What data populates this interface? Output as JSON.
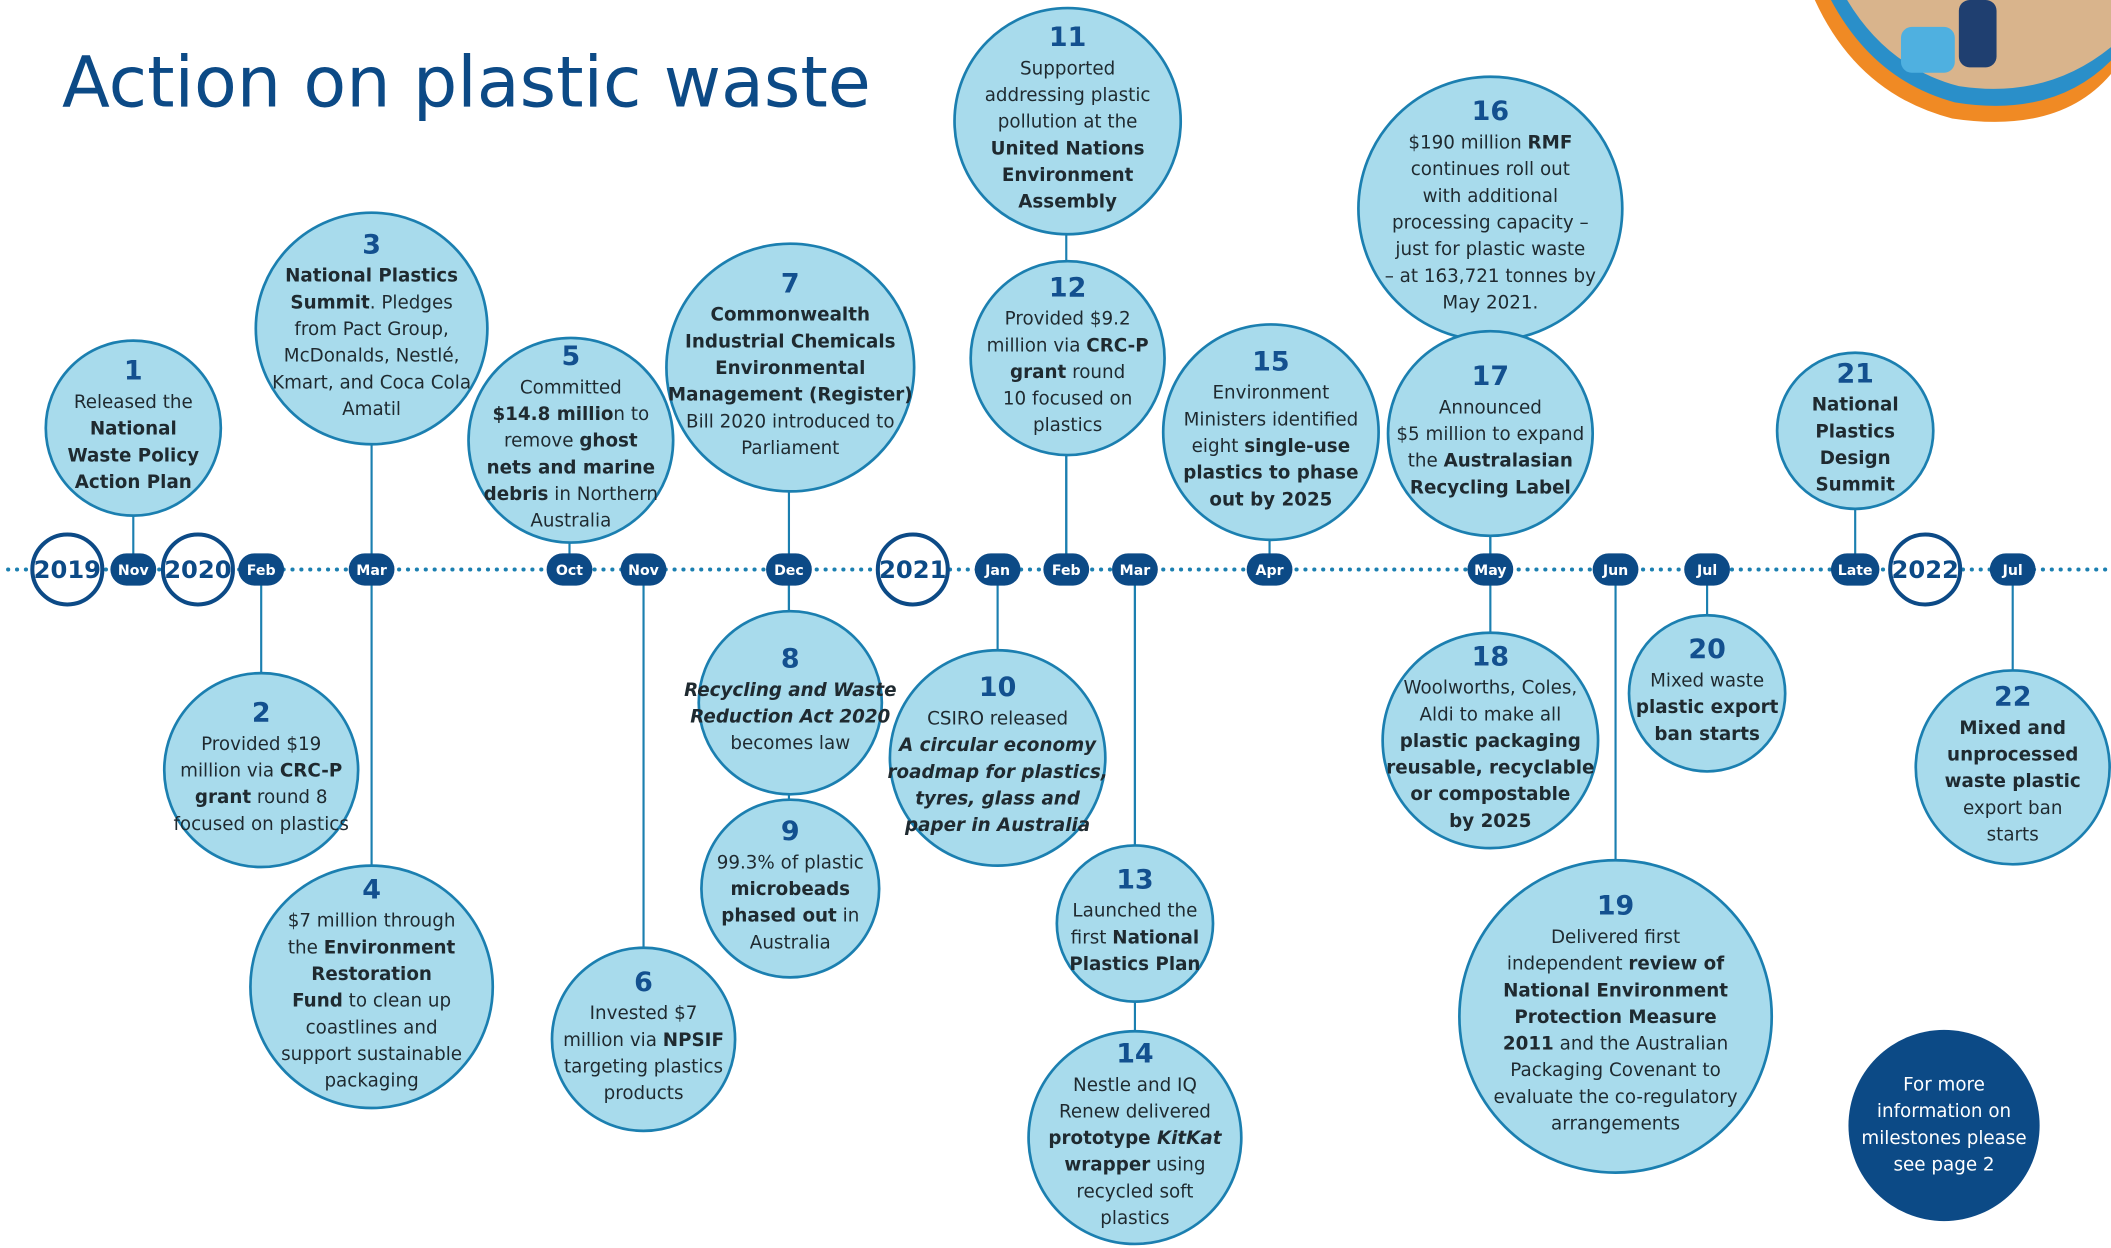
{
  "title": "Action on plastic waste",
  "markers": [
    {
      "label": "2019",
      "kind": "year"
    },
    {
      "label": "Nov",
      "kind": "month"
    },
    {
      "label": "2020",
      "kind": "year"
    },
    {
      "label": "Feb",
      "kind": "month"
    },
    {
      "label": "Mar",
      "kind": "month"
    },
    {
      "label": "Oct",
      "kind": "month"
    },
    {
      "label": "Nov",
      "kind": "month"
    },
    {
      "label": "Dec",
      "kind": "month"
    },
    {
      "label": "2021",
      "kind": "year"
    },
    {
      "label": "Jan",
      "kind": "month"
    },
    {
      "label": "Feb",
      "kind": "month"
    },
    {
      "label": "Mar",
      "kind": "month"
    },
    {
      "label": "Apr",
      "kind": "month"
    },
    {
      "label": "May",
      "kind": "month"
    },
    {
      "label": "Jun",
      "kind": "month"
    },
    {
      "label": "Jul",
      "kind": "month"
    },
    {
      "label": "Late",
      "kind": "month"
    },
    {
      "label": "2022",
      "kind": "year"
    },
    {
      "label": "Jul",
      "kind": "month"
    }
  ],
  "milestones": [
    {
      "number": "1",
      "lines": [
        "Released the",
        [
          {
            "text": "National",
            "bold": true
          }
        ],
        [
          {
            "text": "Waste Policy",
            "bold": true
          }
        ],
        [
          {
            "text": "Action Plan",
            "bold": true
          }
        ]
      ]
    },
    {
      "number": "2",
      "lines": [
        "Provided $19",
        [
          {
            "text": "million via "
          },
          {
            "text": "CRC-P",
            "bold": true
          }
        ],
        [
          {
            "text": "grant",
            "bold": true
          },
          {
            "text": " round 8"
          }
        ],
        "focused on plastics"
      ]
    },
    {
      "number": "3",
      "lines": [
        [
          {
            "text": "National Plastics",
            "bold": true
          }
        ],
        [
          {
            "text": "Summit",
            "bold": true
          },
          {
            "text": ". Pledges"
          }
        ],
        "from Pact Group,",
        "McDonalds, Nestlé,",
        "Kmart, and Coca Cola",
        "Amatil"
      ]
    },
    {
      "number": "4",
      "lines": [
        "$7 million through",
        [
          {
            "text": "the "
          },
          {
            "text": "Environment",
            "bold": true
          }
        ],
        [
          {
            "text": "Restoration",
            "bold": true
          }
        ],
        [
          {
            "text": "Fund",
            "bold": true
          },
          {
            "text": " to clean up"
          }
        ],
        "coastlines and",
        "support sustainable",
        "packaging"
      ]
    },
    {
      "number": "5",
      "lines": [
        "Committed",
        [
          {
            "text": "$14.8 millio",
            "bold": true
          },
          {
            "text": "n to"
          }
        ],
        [
          {
            "text": "remove "
          },
          {
            "text": "ghost",
            "bold": true
          }
        ],
        [
          {
            "text": "nets and marine",
            "bold": true
          }
        ],
        [
          {
            "text": "debris",
            "bold": true
          },
          {
            "text": " in Northern"
          }
        ],
        "Australia"
      ]
    },
    {
      "number": "6",
      "lines": [
        "Invested $7",
        [
          {
            "text": "million via "
          },
          {
            "text": "NPSIF",
            "bold": true
          }
        ],
        "targeting plastics",
        "products"
      ]
    },
    {
      "number": "7",
      "lines": [
        [
          {
            "text": "Commonwealth",
            "bold": true
          }
        ],
        [
          {
            "text": "Industrial Chemicals",
            "bold": true
          }
        ],
        [
          {
            "text": "Environmental",
            "bold": true
          }
        ],
        [
          {
            "text": "Management (Register)",
            "bold": true
          }
        ],
        "Bill 2020 introduced to",
        "Parliament"
      ]
    },
    {
      "number": "8",
      "lines": [
        [
          {
            "text": "Recycling and Waste",
            "bold": true,
            "italic": true
          }
        ],
        [
          {
            "text": "Reduction Act 2020",
            "bold": true,
            "italic": true
          }
        ],
        "becomes law"
      ]
    },
    {
      "number": "9",
      "lines": [
        "99.3% of plastic",
        [
          {
            "text": "microbeads",
            "bold": true
          }
        ],
        [
          {
            "text": "phased out",
            "bold": true
          },
          {
            "text": " in"
          }
        ],
        "Australia"
      ]
    },
    {
      "number": "10",
      "lines": [
        "CSIRO released",
        [
          {
            "text": "A circular economy",
            "bold": true,
            "italic": true
          }
        ],
        [
          {
            "text": "roadmap for plastics,",
            "bold": true,
            "italic": true
          }
        ],
        [
          {
            "text": "tyres, glass and",
            "bold": true,
            "italic": true
          }
        ],
        [
          {
            "text": "paper in Australia",
            "bold": true,
            "italic": true
          }
        ]
      ]
    },
    {
      "number": "11",
      "lines": [
        "Supported",
        "addressing plastic",
        "pollution at the",
        [
          {
            "text": "United Nations",
            "bold": true
          }
        ],
        [
          {
            "text": "Environment",
            "bold": true
          }
        ],
        [
          {
            "text": "Assembly",
            "bold": true
          }
        ]
      ]
    },
    {
      "number": "12",
      "lines": [
        "Provided $9.2",
        [
          {
            "text": "million via "
          },
          {
            "text": "CRC-P",
            "bold": true
          }
        ],
        [
          {
            "text": "grant",
            "bold": true
          },
          {
            "text": " round"
          }
        ],
        "10 focused on",
        "plastics"
      ]
    },
    {
      "number": "13",
      "lines": [
        "Launched the",
        [
          {
            "text": "first "
          },
          {
            "text": "National",
            "bold": true
          }
        ],
        [
          {
            "text": "Plastics Plan",
            "bold": true
          }
        ]
      ]
    },
    {
      "number": "14",
      "lines": [
        "Nestle and IQ",
        "Renew delivered",
        [
          {
            "text": "prototype ",
            "bold": true
          },
          {
            "text": "KitKat",
            "bold": true,
            "italic": true
          }
        ],
        [
          {
            "text": "wrapper",
            "bold": true
          },
          {
            "text": " using"
          }
        ],
        "recycled soft",
        "plastics"
      ]
    },
    {
      "number": "15",
      "lines": [
        "Environment",
        "Ministers identified",
        [
          {
            "text": "eight "
          },
          {
            "text": "single-use",
            "bold": true
          }
        ],
        [
          {
            "text": "plastics to phase",
            "bold": true
          }
        ],
        [
          {
            "text": "out by 2025",
            "bold": true
          }
        ]
      ]
    },
    {
      "number": "16",
      "lines": [
        [
          {
            "text": "$190 million "
          },
          {
            "text": "RMF",
            "bold": true
          }
        ],
        "continues roll out",
        "with additional",
        "processing capacity –",
        "just for plastic waste",
        "– at 163,721 tonnes by",
        "May 2021."
      ]
    },
    {
      "number": "17",
      "lines": [
        "Announced",
        "$5 million to expand",
        [
          {
            "text": "the "
          },
          {
            "text": "Australasian",
            "bold": true
          }
        ],
        [
          {
            "text": "Recycling Label",
            "bold": true
          }
        ]
      ]
    },
    {
      "number": "18",
      "lines": [
        "Woolworths, Coles,",
        "Aldi to make all",
        [
          {
            "text": "plastic packaging",
            "bold": true
          }
        ],
        [
          {
            "text": "reusable, recyclable",
            "bold": true
          }
        ],
        [
          {
            "text": "or compostable",
            "bold": true
          }
        ],
        [
          {
            "text": "by 2025",
            "bold": true
          }
        ]
      ]
    },
    {
      "number": "19",
      "lines": [
        "Delivered first",
        [
          {
            "text": "independent "
          },
          {
            "text": "review of",
            "bold": true
          }
        ],
        [
          {
            "text": "National Environment",
            "bold": true
          }
        ],
        [
          {
            "text": "Protection Measure",
            "bold": true
          }
        ],
        [
          {
            "text": "2011",
            "bold": true
          },
          {
            "text": " and the Australian"
          }
        ],
        "Packaging Covenant to",
        "evaluate the co-regulatory",
        "arrangements"
      ]
    },
    {
      "number": "20",
      "lines": [
        "Mixed waste",
        [
          {
            "text": "plastic export",
            "bold": true
          }
        ],
        [
          {
            "text": "ban starts",
            "bold": true
          }
        ]
      ]
    },
    {
      "number": "21",
      "lines": [
        [
          {
            "text": "National",
            "bold": true
          }
        ],
        [
          {
            "text": "Plastics",
            "bold": true
          }
        ],
        [
          {
            "text": "Design",
            "bold": true
          }
        ],
        [
          {
            "text": "Summit",
            "bold": true
          }
        ]
      ]
    },
    {
      "number": "22",
      "lines": [
        [
          {
            "text": "Mixed and",
            "bold": true
          }
        ],
        [
          {
            "text": "unprocessed",
            "bold": true
          }
        ],
        [
          {
            "text": "waste plastic",
            "bold": true
          }
        ],
        "export ban",
        "starts"
      ]
    }
  ],
  "note": [
    "For more",
    "information on",
    "milestones please",
    "see page 2"
  ]
}
